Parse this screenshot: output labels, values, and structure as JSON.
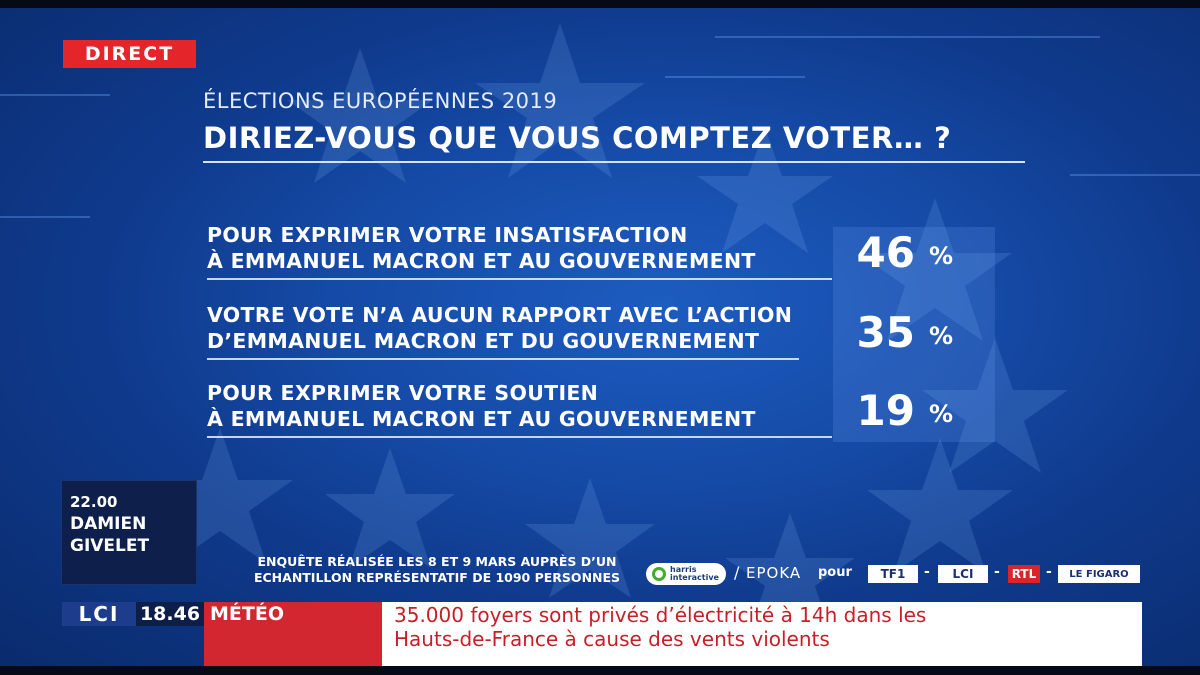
{
  "badge": {
    "direct": "DIRECT"
  },
  "header": {
    "supertitle": "ÉLECTIONS EUROPÉENNES 2019",
    "title": "DIRIEZ-VOUS QUE VOUS COMPTEZ VOTER… ?"
  },
  "results": [
    {
      "label": "POUR EXPRIMER VOTRE INSATISFACTION\nÀ EMMANUEL MACRON ET AU GOUVERNEMENT",
      "value": "46",
      "unit": "%"
    },
    {
      "label": "VOTRE VOTE N’A AUCUN RAPPORT AVEC L’ACTION\nD’EMMANUEL MACRON ET DU GOUVERNEMENT",
      "value": "35",
      "unit": "%"
    },
    {
      "label": "POUR EXPRIMER VOTRE SOUTIEN\nÀ EMMANUEL MACRON ET AU GOUVERNEMENT",
      "value": "19",
      "unit": "%"
    }
  ],
  "next_show": {
    "time": "22.00",
    "presenter": "DAMIEN\nGIVELET"
  },
  "source": {
    "text": "ENQUÊTE RÉALISÉE LES 8 ET 9 MARS AUPRÈS D’UN\nECHANTILLON REPRÉSENTATIF DE 1090 PERSONNES",
    "pollster": "harris\ninteractive",
    "pollster2": "EPOKA",
    "pour": "pour",
    "partners": [
      "TF1",
      "LCI",
      "RTL",
      "LE FIGARO"
    ]
  },
  "ticker": {
    "channel": "LCI",
    "time": "18.46",
    "category": "MÉTÉO",
    "headline": "35.000 foyers sont privés d’électricité à 14h dans les\nHauts-de-France à cause des vents violents"
  },
  "colors": {
    "background": "#154aa6",
    "badge_red": "#e4262b",
    "ticker_red": "#d22630",
    "headline_text": "#c81e28"
  }
}
